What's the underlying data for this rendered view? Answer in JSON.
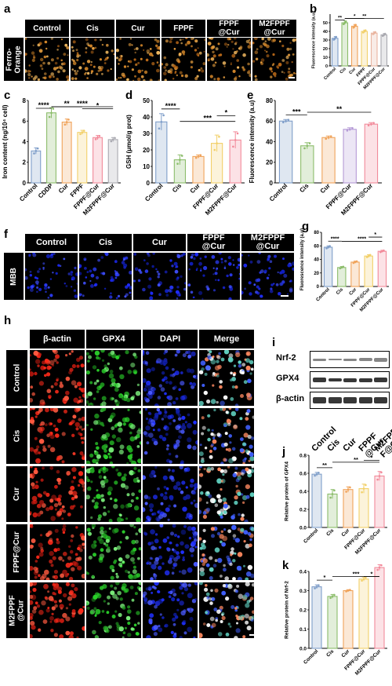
{
  "panels": {
    "a": "a",
    "b": "b",
    "c": "c",
    "d": "d",
    "e": "e",
    "f": "f",
    "g": "g",
    "h": "h",
    "i": "i",
    "j": "j",
    "k": "k"
  },
  "groups_a": [
    "Control",
    "Cis",
    "Cur",
    "FPPF",
    "FPPF\n@Cur",
    "M2FPPF\n@Cur"
  ],
  "row_a": "Ferro-\nOrange",
  "groups_f": [
    "Control",
    "Cis",
    "Cur",
    "FPPF\n@Cur",
    "M2FPPF\n@Cur"
  ],
  "row_f": "MBB",
  "h_cols": [
    "β-actin",
    "GPX4",
    "DAPI",
    "Merge"
  ],
  "h_rows": [
    "Control",
    "Cis",
    "Cur",
    "FPPF@Cur",
    "M2FPPF\n@Cur"
  ],
  "wb_bands": [
    "Nrf-2",
    "GPX4",
    "β-actin"
  ],
  "wb_lanes": [
    "Control",
    "Cis",
    "Cur",
    "FPPF\n@Cur",
    "M2FPP\nF@Cur"
  ],
  "colors": {
    "Control": "#7f9ec9",
    "Cis": "#8cbd6b",
    "CisAlt": "#8cbd6b",
    "Cur": "#f0a35a",
    "FPPF": "#f2d06a",
    "FPPF@Cur": "#e9b5a0",
    "M2FPPF@Cur": "#a9a9b0",
    "pink": "#f28a9a",
    "purple": "#b59ad6"
  },
  "chart_data": [
    {
      "id": "b",
      "type": "bar",
      "categories": [
        "Control",
        "Cis",
        "Cur",
        "FPPF",
        "FPPF@Cur",
        "M2FPPF@Cur"
      ],
      "values": [
        32,
        50,
        46,
        40,
        38,
        36
      ],
      "errors": [
        2,
        2,
        2,
        1.5,
        1.5,
        1.5
      ],
      "ylabel": "Fluorescence intensity (a.u)",
      "ylim": [
        0,
        60
      ],
      "yticks": [
        0,
        10,
        20,
        30,
        40,
        50
      ],
      "colors": [
        "#7f9ec9",
        "#8cbd6b",
        "#f0a35a",
        "#f2d06a",
        "#e9b5a0",
        "#a9a9b0"
      ],
      "sig": [
        {
          "a": 0,
          "b": 1,
          "t": "**"
        },
        {
          "a": 1,
          "b": 3,
          "t": "*"
        },
        {
          "a": 1,
          "b": 5,
          "t": "**"
        }
      ]
    },
    {
      "id": "c",
      "type": "bar",
      "categories": [
        "Control",
        "CDDP",
        "Cur",
        "FPPF",
        "FPPF@Cur",
        "M2FPPF@Cur"
      ],
      "values": [
        3.1,
        6.8,
        5.9,
        4.9,
        4.4,
        4.2
      ],
      "errors": [
        0.3,
        0.5,
        0.3,
        0.2,
        0.2,
        0.2
      ],
      "ylabel": "Iron content (ng/10⁴ cell)",
      "ylim": [
        0,
        8
      ],
      "yticks": [
        0,
        2,
        4,
        6,
        8
      ],
      "colors": [
        "#7f9ec9",
        "#8cbd6b",
        "#f0a35a",
        "#f2d06a",
        "#f28a9a",
        "#a9a9b0"
      ],
      "sig": [
        {
          "a": 0,
          "b": 1,
          "t": "****"
        },
        {
          "a": 1,
          "b": 5,
          "t": "****"
        },
        {
          "a": 1,
          "b": 3,
          "t": "**"
        },
        {
          "a": 3,
          "b": 5,
          "t": "*"
        }
      ]
    },
    {
      "id": "d",
      "type": "bar",
      "categories": [
        "Control",
        "Cis",
        "Cur",
        "FPPF@Cur",
        "M2FPPF@Cur"
      ],
      "values": [
        37,
        14,
        16,
        24,
        26
      ],
      "errors": [
        5,
        3,
        1,
        5,
        5
      ],
      "ylabel": "GSH (μmol/g prot)",
      "ylim": [
        0,
        50
      ],
      "yticks": [
        0,
        10,
        20,
        30,
        40,
        50
      ],
      "colors": [
        "#7f9ec9",
        "#8cbd6b",
        "#f0a35a",
        "#f2d06a",
        "#f28a9a"
      ],
      "sig": [
        {
          "a": 0,
          "b": 1,
          "t": "****"
        },
        {
          "a": 1,
          "b": 4,
          "t": "***"
        },
        {
          "a": 3,
          "b": 4,
          "t": "*"
        }
      ]
    },
    {
      "id": "e",
      "type": "bar",
      "categories": [
        "Control",
        "Cis",
        "Cur",
        "FPPF@Cur",
        "M2FPPF@Cur"
      ],
      "values": [
        60,
        36,
        44,
        52,
        57
      ],
      "errors": [
        1.5,
        3,
        1.5,
        1.5,
        1.5
      ],
      "ylabel": "Fluorescence intensity (a.u)",
      "ylim": [
        0,
        80
      ],
      "yticks": [
        0,
        20,
        40,
        60,
        80
      ],
      "colors": [
        "#7f9ec9",
        "#8cbd6b",
        "#f0a35a",
        "#b59ad6",
        "#f28a9a"
      ],
      "sig": [
        {
          "a": 0,
          "b": 1,
          "t": "***"
        },
        {
          "a": 1,
          "b": 4,
          "t": "**"
        }
      ]
    },
    {
      "id": "g",
      "type": "bar",
      "categories": [
        "Control",
        "Cis",
        "Cur",
        "FPPF@Cur",
        "M2FPPF@Cur"
      ],
      "values": [
        58,
        28,
        36,
        45,
        52
      ],
      "errors": [
        2,
        1.5,
        1.5,
        2,
        1.5
      ],
      "ylabel": "Fluorescence intensity (a.u)",
      "ylim": [
        0,
        80
      ],
      "yticks": [
        0,
        20,
        40,
        60,
        80
      ],
      "colors": [
        "#7f9ec9",
        "#8cbd6b",
        "#f0a35a",
        "#f2d06a",
        "#f28a9a"
      ],
      "sig": [
        {
          "a": 0,
          "b": 1,
          "t": "****"
        },
        {
          "a": 1,
          "b": 4,
          "t": "****"
        },
        {
          "a": 3,
          "b": 4,
          "t": "*"
        }
      ]
    },
    {
      "id": "j",
      "type": "bar",
      "categories": [
        "Control",
        "Cis",
        "Cur",
        "FPPF@Cur",
        "M2FPPF@Cur"
      ],
      "values": [
        0.59,
        0.37,
        0.42,
        0.43,
        0.57
      ],
      "errors": [
        0.02,
        0.05,
        0.03,
        0.05,
        0.05
      ],
      "ylabel": "Relative protein of GPX4",
      "ylim": [
        0,
        0.8
      ],
      "yticks": [
        0.0,
        0.2,
        0.4,
        0.6,
        0.8
      ],
      "colors": [
        "#7f9ec9",
        "#8cbd6b",
        "#f0a35a",
        "#f2d06a",
        "#f28a9a"
      ],
      "sig": [
        {
          "a": 0,
          "b": 1,
          "t": "**"
        },
        {
          "a": 1,
          "b": 4,
          "t": "**"
        },
        {
          "a": 3,
          "b": 4,
          "t": "*"
        }
      ]
    },
    {
      "id": "k",
      "type": "bar",
      "categories": [
        "Control",
        "Cis",
        "Cur",
        "FPPF@Cur",
        "M2FPPF@Cur"
      ],
      "values": [
        0.32,
        0.27,
        0.3,
        0.36,
        0.42
      ],
      "errors": [
        0.01,
        0.01,
        0.005,
        0.01,
        0.015
      ],
      "ylabel": "Relative protein of Nrf-2",
      "ylim": [
        0,
        0.4
      ],
      "yticks": [
        0.0,
        0.1,
        0.2,
        0.3,
        0.4
      ],
      "colors": [
        "#7f9ec9",
        "#8cbd6b",
        "#f0a35a",
        "#f2d06a",
        "#f28a9a"
      ],
      "sig": [
        {
          "a": 0,
          "b": 1,
          "t": "*"
        },
        {
          "a": 1,
          "b": 4,
          "t": "***"
        },
        {
          "a": 3,
          "b": 4,
          "t": "*"
        }
      ]
    }
  ]
}
